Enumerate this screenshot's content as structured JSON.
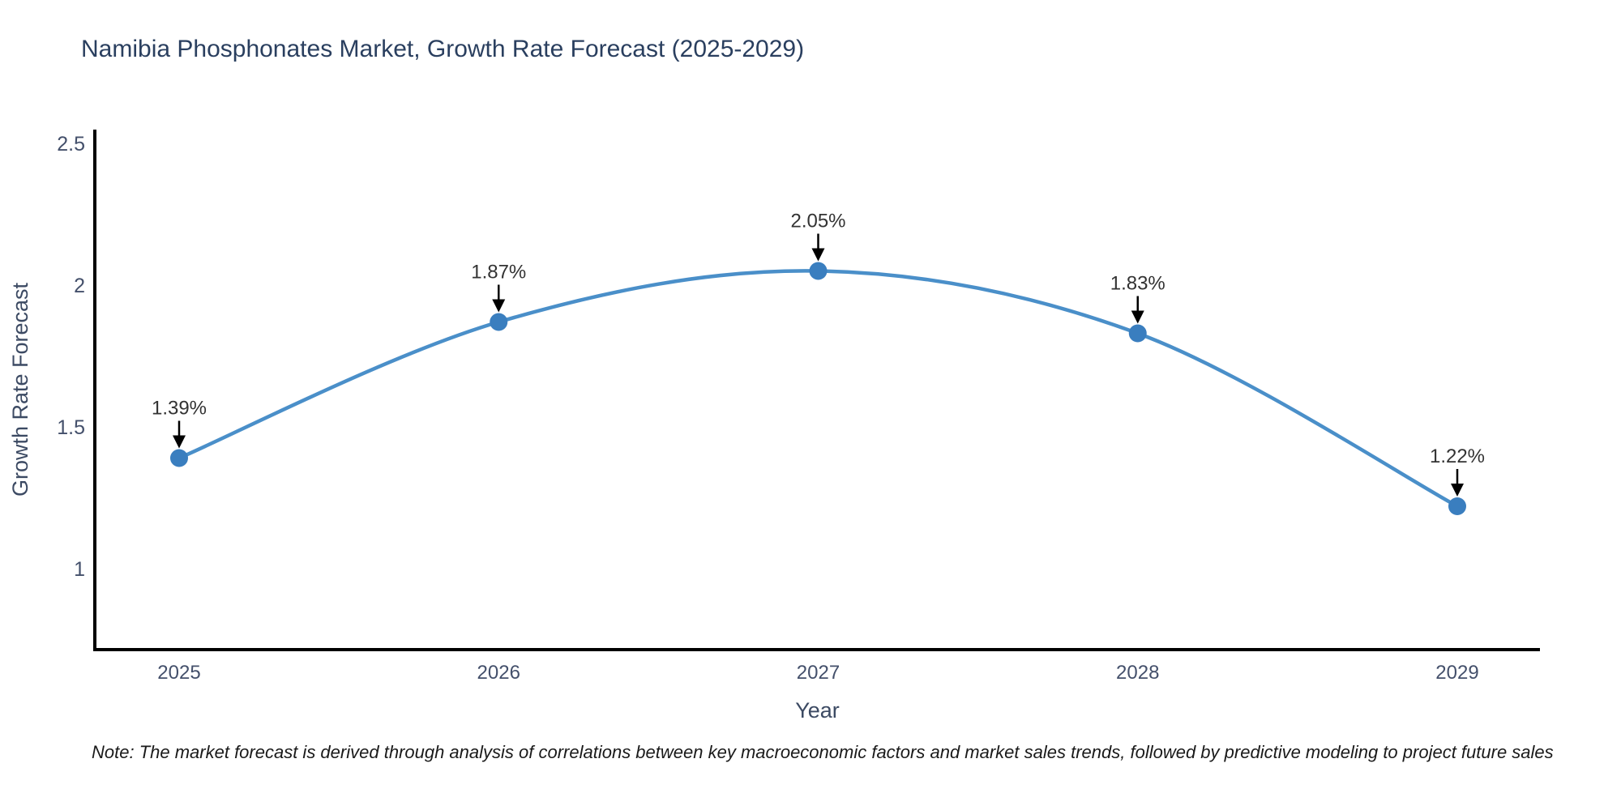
{
  "page": {
    "note": "Note: The market forecast is derived through analysis of correlations between key macroeconomic factors and market sales trends, followed by predictive modeling to project future sales"
  },
  "chart_data": {
    "type": "line",
    "title": "Namibia Phosphonates Market, Growth Rate Forecast (2025-2029)",
    "xlabel": "Year",
    "ylabel": "Growth Rate Forecast",
    "categories": [
      2025,
      2026,
      2027,
      2028,
      2029
    ],
    "values": [
      1.39,
      1.87,
      2.05,
      1.83,
      1.22
    ],
    "point_labels": [
      "1.39%",
      "1.87%",
      "2.05%",
      "1.83%",
      "1.22%"
    ],
    "yticks": [
      2.5,
      2,
      1.5,
      1
    ],
    "ytick_labels": [
      "2.5",
      "2",
      "1.5",
      "1"
    ],
    "ylim": [
      0.71,
      2.55
    ],
    "grid": false,
    "legend": "none",
    "line_shape": "spline",
    "annotation_arrows": true,
    "colors": {
      "line": "#4a8fc9",
      "marker": "#3a7ebf",
      "arrow": "#000000",
      "axis_line": "#000000",
      "title_text": "#2a3f5f",
      "axis_title_text": "#3c4a63",
      "tick_text": "#44506b",
      "annotation_text": "#333333",
      "background": "#ffffff"
    }
  }
}
